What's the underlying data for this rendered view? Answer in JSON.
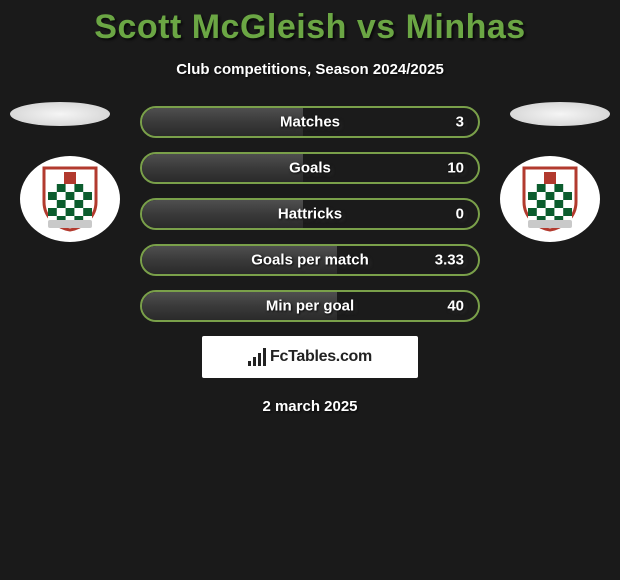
{
  "title": "Scott McGleish vs Minhas",
  "subtitle": "Club competitions, Season 2024/2025",
  "footer_date": "2 march 2025",
  "watermark": {
    "text": "FcTables.com"
  },
  "colors": {
    "background": "#1a1a1a",
    "accent_green": "#6ba644",
    "border_green": "#7aa04a",
    "fill_gray": "#3a3a3a",
    "text_white": "#ffffff"
  },
  "crest": {
    "shield_border": "#b23a2e",
    "shield_top": "#ffffff",
    "shield_top_stripe": "#b23a2e",
    "check_dark": "#0c5d2e",
    "check_light": "#ffffff",
    "banner": "#c9c9c9"
  },
  "stats": [
    {
      "label": "Matches",
      "value": "3",
      "fill_pct": 48
    },
    {
      "label": "Goals",
      "value": "10",
      "fill_pct": 48
    },
    {
      "label": "Hattricks",
      "value": "0",
      "fill_pct": 48
    },
    {
      "label": "Goals per match",
      "value": "3.33",
      "fill_pct": 58
    },
    {
      "label": "Min per goal",
      "value": "40",
      "fill_pct": 58
    }
  ]
}
